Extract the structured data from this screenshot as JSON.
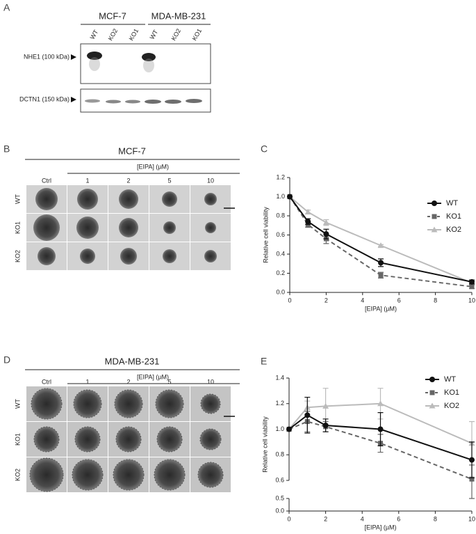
{
  "panels": {
    "a": "A",
    "b": "B",
    "c": "C",
    "d": "D",
    "e": "E"
  },
  "blot": {
    "groups": [
      "MCF-7",
      "MDA-MB-231"
    ],
    "lanes": [
      "WT",
      "KO2",
      "KO1",
      "WT",
      "KO2",
      "KO1"
    ],
    "rows": [
      "NHE1 (100 kDa)",
      "DCTN1 (150 kDa)"
    ]
  },
  "spheroids": [
    {
      "title": "MCF-7",
      "treatment": "[EIPA] (µM)",
      "columns": [
        "Ctrl",
        "1",
        "2",
        "5",
        "10"
      ],
      "rows": [
        "WT",
        "KO1",
        "KO2"
      ]
    },
    {
      "title": "MDA-MB-231",
      "treatment": "[EIPA] (µM)",
      "columns": [
        "Ctrl",
        "1",
        "2",
        "5",
        "10"
      ],
      "rows": [
        "WT",
        "KO1",
        "KO2"
      ]
    }
  ],
  "chart_data": [
    {
      "type": "line",
      "xlabel": "[EIPA] (µM)",
      "ylabel": "Relative cell viability",
      "x": [
        0,
        1,
        2,
        5,
        10
      ],
      "xlim": [
        0,
        10
      ],
      "xticks": [
        0,
        2,
        4,
        6,
        8,
        10
      ],
      "ylim": [
        0,
        1.2
      ],
      "yticks": [
        {
          "value": 0,
          "label": "0.0"
        },
        0.2,
        0.4,
        0.6,
        0.8,
        {
          "value": 1,
          "label": "1.0"
        },
        1.2
      ],
      "legend": "upper right",
      "series": [
        {
          "name": "WT",
          "color": "#111111",
          "marker": "circle",
          "dash": false,
          "values": [
            1.0,
            0.74,
            0.61,
            0.31,
            0.11
          ],
          "errors": [
            0,
            0.03,
            0.05,
            0.04,
            0.02
          ]
        },
        {
          "name": "KO1",
          "color": "#666666",
          "marker": "square",
          "dash": true,
          "values": [
            1.0,
            0.71,
            0.56,
            0.18,
            0.06
          ],
          "errors": [
            0,
            0.03,
            0.05,
            0.03,
            0.02
          ]
        },
        {
          "name": "KO2",
          "color": "#bbbbbb",
          "marker": "triangle",
          "dash": false,
          "values": [
            1.0,
            0.84,
            0.73,
            0.49,
            0.1
          ],
          "errors": [
            0,
            0.02,
            0.03,
            0.01,
            0.01
          ]
        }
      ]
    },
    {
      "type": "line",
      "xlabel": "[EIPA] (µM)",
      "ylabel": "Relative cell viability",
      "x": [
        0,
        1,
        2,
        5,
        10
      ],
      "xlim": [
        0,
        10
      ],
      "xticks": [
        0,
        2,
        4,
        6,
        8,
        10
      ],
      "ylim": [
        0,
        1.4
      ],
      "ybreak": [
        0.5,
        0.6
      ],
      "yticks": [
        {
          "value": 0,
          "label": "0.0"
        },
        0.5,
        0.6,
        0.8,
        {
          "value": 1,
          "label": "1.0"
        },
        1.2,
        1.4
      ],
      "legend": "upper right",
      "series": [
        {
          "name": "WT",
          "color": "#111111",
          "marker": "circle",
          "dash": false,
          "values": [
            1.0,
            1.11,
            1.03,
            1.0,
            0.76
          ],
          "errors": [
            0,
            0.14,
            0.05,
            0.13,
            0.14
          ]
        },
        {
          "name": "KO1",
          "color": "#666666",
          "marker": "square",
          "dash": true,
          "values": [
            1.0,
            1.06,
            1.02,
            0.89,
            0.61
          ],
          "errors": [
            0,
            0.08,
            0.04,
            0.07,
            0.11
          ]
        },
        {
          "name": "KO2",
          "color": "#bbbbbb",
          "marker": "triangle",
          "dash": false,
          "values": [
            1.0,
            1.17,
            1.18,
            1.2,
            0.89
          ],
          "errors": [
            0,
            0.05,
            0.14,
            0.12,
            0.17
          ]
        }
      ]
    }
  ]
}
